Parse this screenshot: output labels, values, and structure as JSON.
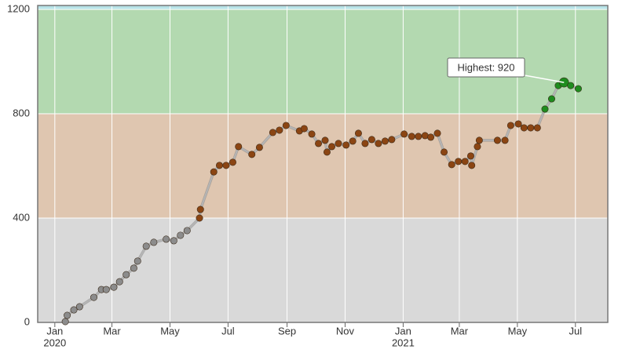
{
  "chart_data": {
    "type": "line",
    "x": [
      "2020-01-12",
      "2020-01-14",
      "2020-01-21",
      "2020-01-27",
      "2020-02-11",
      "2020-02-19",
      "2020-02-24",
      "2020-03-03",
      "2020-03-09",
      "2020-03-16",
      "2020-03-24",
      "2020-03-28",
      "2020-04-06",
      "2020-04-14",
      "2020-04-27",
      "2020-05-05",
      "2020-05-12",
      "2020-05-19",
      "2020-06-01",
      "2020-06-02",
      "2020-06-16",
      "2020-06-22",
      "2020-06-29",
      "2020-07-06",
      "2020-07-12",
      "2020-07-26",
      "2020-08-03",
      "2020-08-17",
      "2020-08-24",
      "2020-08-31",
      "2020-09-14",
      "2020-09-19",
      "2020-09-27",
      "2020-10-04",
      "2020-10-11",
      "2020-10-13",
      "2020-10-18",
      "2020-10-25",
      "2020-11-02",
      "2020-11-09",
      "2020-11-15",
      "2020-11-22",
      "2020-11-29",
      "2020-12-06",
      "2020-12-13",
      "2020-12-20",
      "2021-01-02",
      "2021-01-10",
      "2021-01-17",
      "2021-01-24",
      "2021-01-30",
      "2021-02-06",
      "2021-02-13",
      "2021-02-21",
      "2021-02-28",
      "2021-03-07",
      "2021-03-13",
      "2021-03-14",
      "2021-03-20",
      "2021-03-22",
      "2021-04-10",
      "2021-04-18",
      "2021-04-24",
      "2021-05-02",
      "2021-05-08",
      "2021-05-15",
      "2021-05-22",
      "2021-05-30",
      "2021-06-06",
      "2021-06-13",
      "2021-06-19",
      "2021-06-26",
      "2021-07-04"
    ],
    "values": [
      3,
      27,
      48,
      60,
      96,
      126,
      126,
      135,
      156,
      183,
      208,
      235,
      292,
      307,
      319,
      313,
      334,
      352,
      400,
      433,
      577,
      602,
      602,
      614,
      674,
      644,
      671,
      728,
      737,
      755,
      734,
      743,
      722,
      686,
      698,
      653,
      674,
      686,
      680,
      695,
      725,
      686,
      701,
      686,
      695,
      701,
      722,
      713,
      713,
      716,
      710,
      725,
      653,
      605,
      617,
      617,
      638,
      602,
      674,
      698,
      698,
      698,
      755,
      761,
      746,
      746,
      746,
      818,
      857,
      908,
      920,
      908,
      896
    ],
    "line_color": "#b5b5b5",
    "bands": [
      {
        "from": 0,
        "to": 400,
        "color": "#d9d9d9",
        "point_color": "#8c8c8c"
      },
      {
        "from": 400,
        "to": 800,
        "color": "#dfc6b0",
        "point_color": "#8b4513"
      },
      {
        "from": 800,
        "to": 1200,
        "color": "#b3d9b0",
        "point_color": "#1e8c1e"
      },
      {
        "from": 1200,
        "to": 1215,
        "color": "#b8e4e8",
        "point_color": "#1e8c1e"
      }
    ],
    "annotation": {
      "text": "Highest: 920",
      "index": 70
    },
    "xlim": [
      "2019-12-14",
      "2021-08-04"
    ],
    "xticks": [
      {
        "value": "2020-01-01",
        "label": "Jan"
      },
      {
        "value": "2020-03-01",
        "label": "Mar"
      },
      {
        "value": "2020-05-01",
        "label": "May"
      },
      {
        "value": "2020-07-01",
        "label": "Jul"
      },
      {
        "value": "2020-09-01",
        "label": "Sep"
      },
      {
        "value": "2020-11-01",
        "label": "Nov"
      },
      {
        "value": "2021-01-01",
        "label": "Jan"
      },
      {
        "value": "2021-03-01",
        "label": "Mar"
      },
      {
        "value": "2021-05-01",
        "label": "May"
      },
      {
        "value": "2021-07-01",
        "label": "Jul"
      }
    ],
    "xyears": [
      {
        "value": "2020-01-01",
        "label": "2020"
      },
      {
        "value": "2021-01-01",
        "label": "2021"
      }
    ],
    "ylim": [
      0,
      1215
    ],
    "yticks": [
      0,
      400,
      800,
      1200
    ],
    "grid": true
  }
}
